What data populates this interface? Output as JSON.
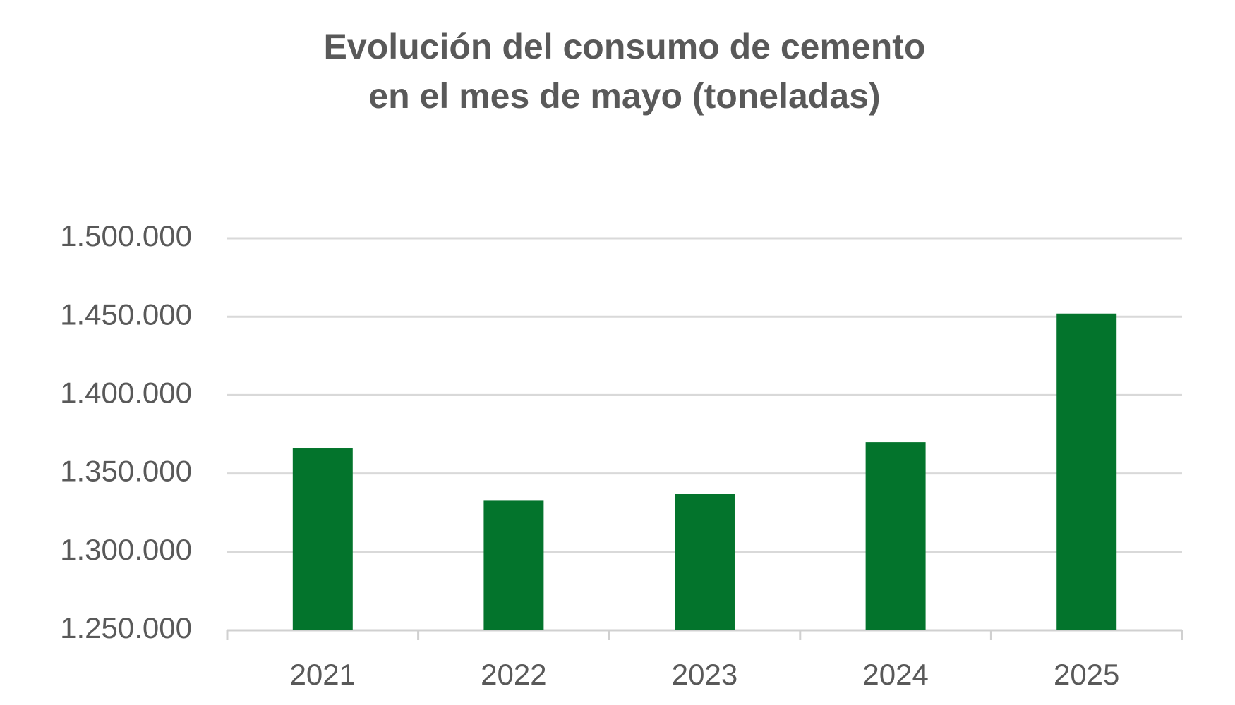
{
  "chart_data": {
    "type": "bar",
    "title": [
      "Evolución del consumo de cemento",
      "en el mes de mayo (toneladas)"
    ],
    "categories": [
      "2021",
      "2022",
      "2023",
      "2024",
      "2025"
    ],
    "values": [
      1366000,
      1333000,
      1337000,
      1370000,
      1452000
    ],
    "color": "#03742c",
    "ylim": [
      1250000,
      1500000
    ],
    "yticks": [
      {
        "value": 1250000,
        "label": "1.250.000"
      },
      {
        "value": 1300000,
        "label": "1.300.000"
      },
      {
        "value": 1350000,
        "label": "1.350.000"
      },
      {
        "value": 1400000,
        "label": "1.400.000"
      },
      {
        "value": 1450000,
        "label": "1.450.000"
      },
      {
        "value": 1500000,
        "label": "1.500.000"
      }
    ],
    "grid": true
  }
}
